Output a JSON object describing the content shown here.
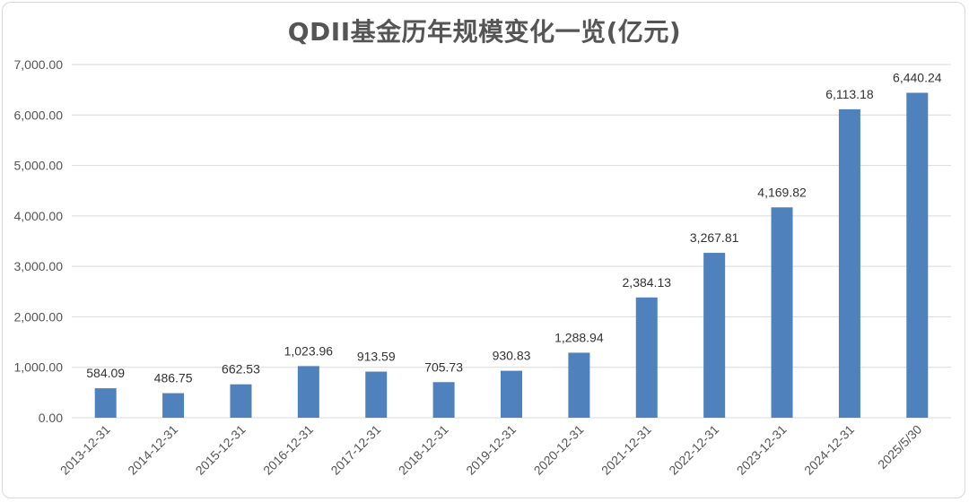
{
  "chart_data": {
    "type": "bar",
    "title": "QDII基金历年规模变化一览(亿元)",
    "categories": [
      "2013-12-31",
      "2014-12-31",
      "2015-12-31",
      "2016-12-31",
      "2017-12-31",
      "2018-12-31",
      "2019-12-31",
      "2020-12-31",
      "2021-12-31",
      "2022-12-31",
      "2023-12-31",
      "2024-12-31",
      "2025/5/30"
    ],
    "values": [
      584.09,
      486.75,
      662.53,
      1023.96,
      913.59,
      705.73,
      930.83,
      1288.94,
      2384.13,
      3267.81,
      4169.82,
      6113.18,
      6440.24
    ],
    "value_labels": [
      "584.09",
      "486.75",
      "662.53",
      "1,023.96",
      "913.59",
      "705.73",
      "930.83",
      "1,288.94",
      "2,384.13",
      "3,267.81",
      "4,169.82",
      "6,113.18",
      "6,440.24"
    ],
    "y_ticks": [
      "0.00",
      "1,000.00",
      "2,000.00",
      "3,000.00",
      "4,000.00",
      "5,000.00",
      "6,000.00",
      "7,000.00"
    ],
    "ylim": [
      0,
      7000
    ],
    "xlabel": "",
    "ylabel": "",
    "grid": true,
    "legend": "none",
    "bar_color": "#4f81bd",
    "grid_color": "#d9d9d9"
  }
}
